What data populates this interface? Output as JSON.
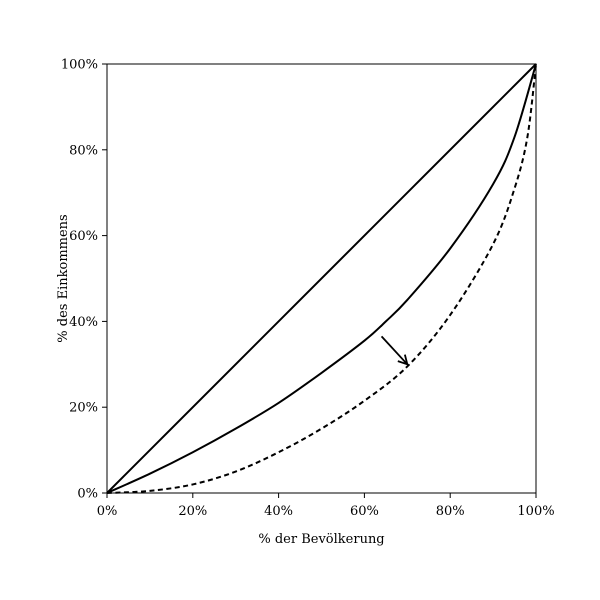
{
  "chart_data": {
    "type": "line",
    "xlabel": "% der Bevölkerung",
    "ylabel": "% des Einkommens",
    "xlim": [
      0,
      100
    ],
    "ylim": [
      0,
      100
    ],
    "x_ticks": [
      "0%",
      "20%",
      "40%",
      "60%",
      "80%",
      "100%"
    ],
    "y_ticks": [
      "0%",
      "20%",
      "40%",
      "60%",
      "80%",
      "100%"
    ],
    "grid": false,
    "legend": "none",
    "series": [
      {
        "style": "solid",
        "x": [
          0,
          100
        ],
        "y": [
          0,
          100
        ]
      },
      {
        "style": "solid",
        "x": [
          0,
          10,
          20,
          30,
          40,
          50,
          60,
          65,
          70,
          80,
          90,
          95,
          100
        ],
        "y": [
          0,
          4.5,
          9.5,
          15,
          21,
          28,
          35.5,
          40,
          45,
          57,
          72,
          83,
          100
        ]
      },
      {
        "style": "dashed",
        "x": [
          0,
          10,
          20,
          30,
          40,
          50,
          60,
          70,
          80,
          90,
          95,
          98,
          100
        ],
        "y": [
          0,
          0.5,
          2,
          5,
          9.5,
          15,
          21.5,
          29.5,
          41.5,
          58,
          71,
          83,
          100
        ]
      }
    ],
    "annotations": [
      {
        "type": "arrow",
        "from": [
          64,
          36.5
        ],
        "to": [
          70,
          30
        ],
        "meaning": "shift from solid curve to dashed curve"
      }
    ]
  }
}
